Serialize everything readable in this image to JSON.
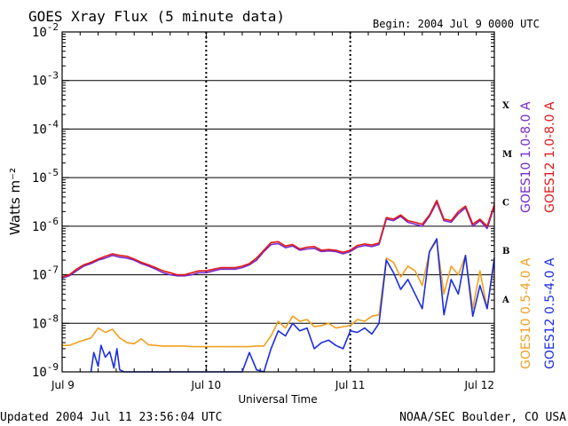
{
  "header": {
    "title": "GOES Xray Flux (5 minute data)",
    "begin": "Begin:  2004 Jul 9 0000 UTC"
  },
  "footer": {
    "updated": "Updated 2004 Jul 11 23:56:04 UTC",
    "credit": "NOAA/SEC Boulder, CO USA"
  },
  "colors": {
    "goes10_long": "#7a28c8",
    "goes12_long": "#e01818",
    "goes10_short": "#f0a020",
    "goes12_short": "#1a2ee0",
    "grid": "#000000"
  },
  "chart_data": {
    "type": "line",
    "title": "GOES Xray Flux (5 minute data)",
    "xlabel": "Universal Time",
    "ylabel": "Watts m⁻²",
    "yscale": "log",
    "ylim": [
      1e-09,
      0.01
    ],
    "xlim": [
      0,
      3
    ],
    "x_tick_labels": [
      "Jul 9",
      "Jul 10",
      "Jul 11",
      "Jul 12"
    ],
    "x_tick_values": [
      0,
      1,
      2,
      3
    ],
    "y_tick_labels": [
      {
        "base": "10",
        "exp": "-9",
        "value": 1e-09
      },
      {
        "base": "10",
        "exp": "-8",
        "value": 1e-08
      },
      {
        "base": "10",
        "exp": "-7",
        "value": 1e-07
      },
      {
        "base": "10",
        "exp": "-6",
        "value": 1e-06
      },
      {
        "base": "10",
        "exp": "-5",
        "value": 1e-05
      },
      {
        "base": "10",
        "exp": "-4",
        "value": 0.0001
      },
      {
        "base": "10",
        "exp": "-3",
        "value": 0.001
      },
      {
        "base": "10",
        "exp": "-2",
        "value": 0.01
      }
    ],
    "flare_classes": [
      {
        "label": "X",
        "value": 0.000316
      },
      {
        "label": "M",
        "value": 3.16e-05
      },
      {
        "label": "C",
        "value": 3.16e-06
      },
      {
        "label": "B",
        "value": 3.16e-07
      },
      {
        "label": "A",
        "value": 3.16e-08
      }
    ],
    "legend_right": [
      {
        "label": "GOES10 1.0-8.0 A",
        "color": "#7a28c8"
      },
      {
        "label": "GOES12 1.0-8.0 A",
        "color": "#e01818"
      }
    ],
    "legend_bottom": [
      {
        "label": "GOES10 0.5-4.0 A",
        "color": "#f0a020"
      },
      {
        "label": "GOES12 0.5-4.0 A",
        "color": "#1a2ee0"
      }
    ],
    "series": [
      {
        "name": "GOES10 1.0-8.0 A",
        "color": "#7a28c8",
        "x": [
          0.0,
          0.05,
          0.1,
          0.15,
          0.2,
          0.25,
          0.3,
          0.35,
          0.4,
          0.45,
          0.5,
          0.55,
          0.6,
          0.65,
          0.7,
          0.75,
          0.8,
          0.85,
          0.9,
          0.95,
          1.0,
          1.05,
          1.1,
          1.15,
          1.2,
          1.25,
          1.3,
          1.35,
          1.4,
          1.45,
          1.5,
          1.55,
          1.6,
          1.65,
          1.7,
          1.75,
          1.8,
          1.85,
          1.9,
          1.95,
          2.0,
          2.05,
          2.1,
          2.15,
          2.2,
          2.25,
          2.3,
          2.35,
          2.4,
          2.45,
          2.5,
          2.55,
          2.6,
          2.65,
          2.7,
          2.75,
          2.8,
          2.85,
          2.9,
          2.95,
          3.0
        ],
        "y": [
          8.5e-08,
          9.5e-08,
          1.2e-07,
          1.5e-07,
          1.7e-07,
          2e-07,
          2.2e-07,
          2.5e-07,
          2.3e-07,
          2.2e-07,
          2e-07,
          1.7e-07,
          1.5e-07,
          1.3e-07,
          1.1e-07,
          1e-07,
          9.5e-08,
          9.5e-08,
          1e-07,
          1.1e-07,
          1.1e-07,
          1.2e-07,
          1.3e-07,
          1.3e-07,
          1.3e-07,
          1.4e-07,
          1.6e-07,
          2e-07,
          3e-07,
          4.2e-07,
          4.4e-07,
          3.6e-07,
          3.9e-07,
          3.2e-07,
          3.4e-07,
          3.5e-07,
          3e-07,
          3.1e-07,
          3e-07,
          2.7e-07,
          3e-07,
          3.7e-07,
          4e-07,
          3.8e-07,
          4.2e-07,
          1.4e-06,
          1.3e-06,
          1.6e-06,
          1.2e-06,
          1.1e-06,
          1e-06,
          1.6e-06,
          3.1e-06,
          1.3e-06,
          1.2e-06,
          1.8e-06,
          2.4e-06,
          1e-06,
          1.3e-06,
          9e-07,
          2.6e-06
        ]
      },
      {
        "name": "GOES12 1.0-8.0 A",
        "color": "#e01818",
        "x": [
          0.0,
          0.05,
          0.1,
          0.15,
          0.2,
          0.25,
          0.3,
          0.35,
          0.4,
          0.45,
          0.5,
          0.55,
          0.6,
          0.65,
          0.7,
          0.75,
          0.8,
          0.85,
          0.9,
          0.95,
          1.0,
          1.05,
          1.1,
          1.15,
          1.2,
          1.25,
          1.3,
          1.35,
          1.4,
          1.45,
          1.5,
          1.55,
          1.6,
          1.65,
          1.7,
          1.75,
          1.8,
          1.85,
          1.9,
          1.95,
          2.0,
          2.05,
          2.1,
          2.15,
          2.2,
          2.25,
          2.3,
          2.35,
          2.4,
          2.45,
          2.5,
          2.55,
          2.6,
          2.65,
          2.7,
          2.75,
          2.8,
          2.85,
          2.9,
          2.95,
          3.0
        ],
        "y": [
          9e-08,
          1e-07,
          1.3e-07,
          1.6e-07,
          1.8e-07,
          2.1e-07,
          2.4e-07,
          2.7e-07,
          2.5e-07,
          2.4e-07,
          2.1e-07,
          1.8e-07,
          1.6e-07,
          1.4e-07,
          1.2e-07,
          1.1e-07,
          1e-07,
          1e-07,
          1.1e-07,
          1.2e-07,
          1.2e-07,
          1.3e-07,
          1.4e-07,
          1.4e-07,
          1.4e-07,
          1.5e-07,
          1.7e-07,
          2.2e-07,
          3.2e-07,
          4.6e-07,
          4.8e-07,
          3.9e-07,
          4.2e-07,
          3.4e-07,
          3.7e-07,
          3.8e-07,
          3.2e-07,
          3.3e-07,
          3.2e-07,
          2.9e-07,
          3.2e-07,
          4e-07,
          4.3e-07,
          4.1e-07,
          4.5e-07,
          1.5e-06,
          1.4e-06,
          1.7e-06,
          1.3e-06,
          1.2e-06,
          1.1e-06,
          1.7e-06,
          3.4e-06,
          1.4e-06,
          1.3e-06,
          2e-06,
          2.6e-06,
          1.1e-06,
          1.4e-06,
          1e-06,
          2.8e-06
        ]
      },
      {
        "name": "GOES10 0.5-4.0 A",
        "color": "#f0a020",
        "x": [
          0.0,
          0.05,
          0.1,
          0.15,
          0.2,
          0.25,
          0.3,
          0.35,
          0.4,
          0.45,
          0.5,
          0.55,
          0.6,
          0.65,
          0.7,
          0.75,
          0.8,
          0.85,
          0.9,
          0.95,
          1.0,
          1.05,
          1.1,
          1.15,
          1.2,
          1.25,
          1.3,
          1.35,
          1.4,
          1.45,
          1.5,
          1.55,
          1.6,
          1.65,
          1.7,
          1.75,
          1.8,
          1.85,
          1.9,
          1.95,
          2.0,
          2.05,
          2.1,
          2.15,
          2.2,
          2.25,
          2.3,
          2.35,
          2.4,
          2.45,
          2.5,
          2.55,
          2.6,
          2.65,
          2.7,
          2.75,
          2.8,
          2.85,
          2.9,
          2.95,
          3.0
        ],
        "y": [
          3.5e-09,
          3.5e-09,
          4e-09,
          4.5e-09,
          5e-09,
          8e-09,
          6.5e-09,
          7.5e-09,
          5e-09,
          4e-09,
          3.8e-09,
          4.8e-09,
          3.6e-09,
          3.5e-09,
          3.4e-09,
          3.4e-09,
          3.4e-09,
          3.4e-09,
          3.3e-09,
          3.3e-09,
          3.3e-09,
          3.3e-09,
          3.3e-09,
          3.3e-09,
          3.3e-09,
          3.3e-09,
          3.3e-09,
          3.4e-09,
          3.4e-09,
          5.5e-09,
          1.1e-08,
          8e-09,
          1.4e-08,
          1.1e-08,
          1.2e-08,
          8.5e-09,
          9e-09,
          1e-08,
          8e-09,
          8.5e-09,
          9e-09,
          1.2e-08,
          1.1e-08,
          1.4e-08,
          1.5e-08,
          2.2e-07,
          1.8e-07,
          9e-08,
          1.5e-07,
          1.2e-07,
          6e-08,
          3e-07,
          5e-07,
          4e-08,
          1.5e-07,
          1e-07,
          2.5e-07,
          2e-08,
          1.2e-07,
          2e-08,
          1.8e-07
        ]
      },
      {
        "name": "GOES12 0.5-4.0 A",
        "color": "#1a2ee0",
        "x": [
          0.2,
          0.22,
          0.25,
          0.27,
          0.3,
          0.33,
          0.36,
          0.38,
          0.4,
          0.43,
          0.46,
          0.5,
          0.55,
          0.6,
          0.65,
          0.7,
          0.75,
          0.8,
          0.85,
          0.9,
          0.95,
          1.0,
          1.05,
          1.1,
          1.15,
          1.2,
          1.25,
          1.3,
          1.35,
          1.4,
          1.45,
          1.5,
          1.55,
          1.6,
          1.65,
          1.7,
          1.75,
          1.8,
          1.85,
          1.9,
          1.95,
          2.0,
          2.05,
          2.1,
          2.15,
          2.2,
          2.25,
          2.3,
          2.35,
          2.4,
          2.45,
          2.5,
          2.55,
          2.6,
          2.65,
          2.7,
          2.75,
          2.8,
          2.85,
          2.9,
          2.95,
          3.0
        ],
        "y": [
          1e-09,
          2.5e-09,
          1.3e-09,
          3.5e-09,
          2e-09,
          2.6e-09,
          1.2e-09,
          3e-09,
          1.1e-09,
          1e-09,
          1e-09,
          1e-09,
          1e-09,
          1e-09,
          1e-09,
          1e-09,
          1e-09,
          1e-09,
          1e-09,
          1e-09,
          1e-09,
          1e-09,
          1e-09,
          1e-09,
          1e-09,
          1e-09,
          1e-09,
          2.5e-09,
          1.1e-09,
          1e-09,
          3e-09,
          7e-09,
          5.5e-09,
          1e-08,
          7e-09,
          8e-09,
          3e-09,
          4e-09,
          4.5e-09,
          3.5e-09,
          3e-09,
          7e-09,
          6.5e-09,
          8e-09,
          6e-09,
          1e-08,
          2e-07,
          1.1e-07,
          5e-08,
          8e-08,
          4e-08,
          2e-08,
          3e-07,
          5.5e-07,
          1.5e-08,
          8e-08,
          4e-08,
          2.5e-07,
          1.4e-08,
          6e-08,
          2e-08,
          2.2e-07
        ]
      }
    ]
  }
}
